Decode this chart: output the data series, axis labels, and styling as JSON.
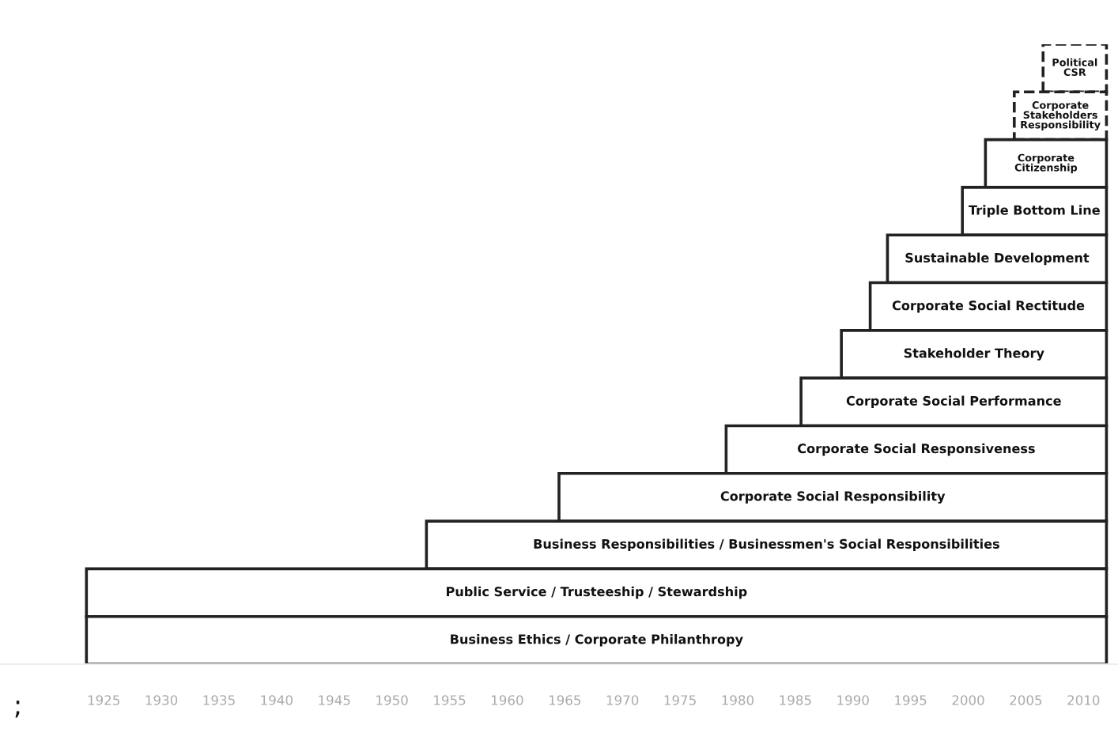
{
  "chart_data": {
    "type": "bar",
    "orientation": "horizontal",
    "categories": [
      "Political\nCSR",
      "Corporate\nStakeholders\nResponsibility",
      "Corporate\nCitizenship",
      "Triple Bottom Line",
      "Sustainable Development",
      "Corporate Social Rectitude",
      "Stakeholder Theory",
      "Corporate Social Performance",
      "Corporate Social Responsiveness",
      "Corporate Social Responsibility",
      "Business Responsibilities / Businessmen's Social Responsibilities",
      "Public Service / Trusteeship / Stewardship",
      "Business Ethics / Corporate Philanthropy"
    ],
    "series": [
      {
        "color": "#ffffff",
        "line_style": "dashed",
        "base": [
          2006.5,
          2004,
          null,
          null,
          null,
          null,
          null,
          null,
          null,
          null,
          null,
          null,
          null
        ],
        "values": [
          5.5,
          8,
          null,
          null,
          null,
          null,
          null,
          null,
          null,
          null,
          null,
          null,
          null
        ]
      },
      {
        "color": "#ffffff",
        "line_style": "solid",
        "base": [
          null,
          null,
          2001.5,
          1999.5,
          1993,
          1991.5,
          1989,
          1985.5,
          1979,
          1964.5,
          1953,
          1923.5,
          1923.5
        ],
        "values": [
          null,
          null,
          10.5,
          12.5,
          19,
          20.5,
          23,
          26.5,
          33,
          47.5,
          59,
          88.5,
          88.5
        ]
      }
    ],
    "xlim": [
      1916,
      2013
    ],
    "xticks": [
      1925,
      1930,
      1935,
      1940,
      1945,
      1950,
      1955,
      1960,
      1965,
      1970,
      1975,
      1980,
      1985,
      1990,
      1995,
      2000,
      2005,
      2010
    ],
    "tick_labels": "x",
    "grid": false,
    "legend": false,
    "annotations": [
      ";"
    ]
  }
}
